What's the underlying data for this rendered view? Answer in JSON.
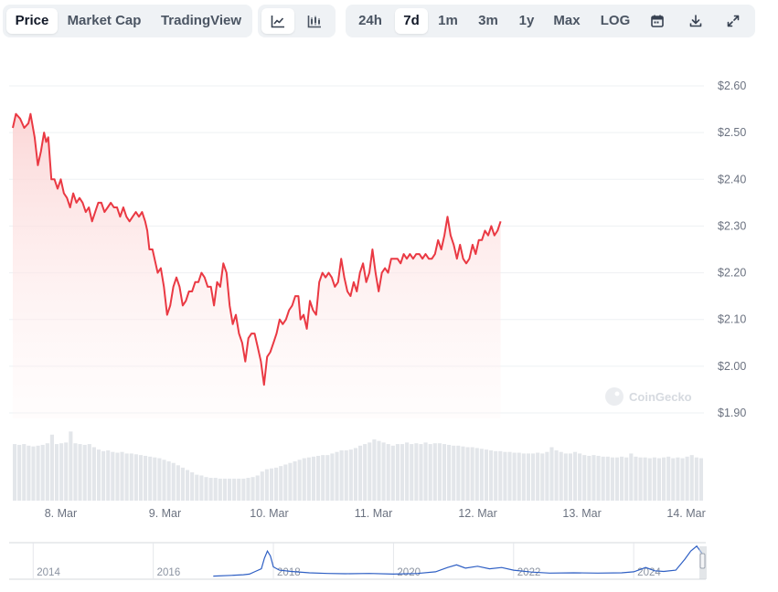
{
  "toolbar": {
    "view_tabs": [
      "Price",
      "Market Cap",
      "TradingView"
    ],
    "active_view": "Price",
    "chart_style_icons": [
      "line-chart-icon",
      "candlestick-chart-icon"
    ],
    "active_style": "line-chart-icon",
    "ranges": [
      "24h",
      "7d",
      "1m",
      "3m",
      "1y",
      "Max",
      "LOG"
    ],
    "active_range": "7d",
    "action_icons": [
      "calendar-icon",
      "download-icon",
      "expand-icon"
    ]
  },
  "watermark": "CoinGecko",
  "colors": {
    "line": "#ea3943",
    "fill_top": "#fbd5d5",
    "volume": "#e3e6ea",
    "minimap_line": "#2e5fc4",
    "grid": "#eef0f3"
  },
  "chart_data": [
    {
      "type": "line",
      "y_tick_labels": [
        "$2.60",
        "$2.50",
        "$2.40",
        "$2.30",
        "$2.20",
        "$2.10",
        "$2.00",
        "$1.90"
      ],
      "ylim": [
        1.9,
        2.6
      ],
      "x_tick_labels": [
        "8. Mar",
        "9. Mar",
        "10. Mar",
        "11. Mar",
        "12. Mar",
        "13. Mar",
        "14. Mar"
      ],
      "x_tick_days": [
        1,
        2,
        3,
        4,
        5,
        6,
        7
      ],
      "xlim_days": [
        0.54,
        7.17
      ],
      "series": [
        {
          "price_points": [
            [
              0.54,
              2.51
            ],
            [
              0.57,
              2.54
            ],
            [
              0.61,
              2.53
            ],
            [
              0.65,
              2.51
            ],
            [
              0.69,
              2.52
            ],
            [
              0.71,
              2.54
            ],
            [
              0.75,
              2.49
            ],
            [
              0.78,
              2.43
            ],
            [
              0.81,
              2.46
            ],
            [
              0.84,
              2.5
            ],
            [
              0.86,
              2.48
            ],
            [
              0.88,
              2.49
            ],
            [
              0.91,
              2.4
            ],
            [
              0.94,
              2.4
            ],
            [
              0.97,
              2.38
            ],
            [
              1.0,
              2.4
            ],
            [
              1.03,
              2.37
            ],
            [
              1.06,
              2.36
            ],
            [
              1.09,
              2.34
            ],
            [
              1.12,
              2.37
            ],
            [
              1.15,
              2.35
            ],
            [
              1.18,
              2.36
            ],
            [
              1.21,
              2.35
            ],
            [
              1.24,
              2.33
            ],
            [
              1.27,
              2.34
            ],
            [
              1.3,
              2.31
            ],
            [
              1.33,
              2.33
            ],
            [
              1.36,
              2.35
            ],
            [
              1.39,
              2.35
            ],
            [
              1.42,
              2.33
            ],
            [
              1.45,
              2.34
            ],
            [
              1.48,
              2.35
            ],
            [
              1.51,
              2.34
            ],
            [
              1.54,
              2.34
            ],
            [
              1.57,
              2.32
            ],
            [
              1.6,
              2.34
            ],
            [
              1.63,
              2.32
            ],
            [
              1.66,
              2.31
            ],
            [
              1.69,
              2.32
            ],
            [
              1.72,
              2.33
            ],
            [
              1.75,
              2.32
            ],
            [
              1.78,
              2.33
            ],
            [
              1.81,
              2.31
            ],
            [
              1.83,
              2.29
            ],
            [
              1.85,
              2.25
            ],
            [
              1.88,
              2.25
            ],
            [
              1.91,
              2.22
            ],
            [
              1.93,
              2.2
            ],
            [
              1.96,
              2.21
            ],
            [
              1.99,
              2.17
            ],
            [
              2.02,
              2.11
            ],
            [
              2.05,
              2.13
            ],
            [
              2.08,
              2.17
            ],
            [
              2.11,
              2.19
            ],
            [
              2.14,
              2.17
            ],
            [
              2.17,
              2.13
            ],
            [
              2.2,
              2.14
            ],
            [
              2.23,
              2.16
            ],
            [
              2.26,
              2.16
            ],
            [
              2.29,
              2.18
            ],
            [
              2.32,
              2.18
            ],
            [
              2.35,
              2.2
            ],
            [
              2.38,
              2.19
            ],
            [
              2.41,
              2.17
            ],
            [
              2.44,
              2.17
            ],
            [
              2.47,
              2.13
            ],
            [
              2.5,
              2.18
            ],
            [
              2.53,
              2.17
            ],
            [
              2.56,
              2.22
            ],
            [
              2.59,
              2.2
            ],
            [
              2.62,
              2.13
            ],
            [
              2.65,
              2.09
            ],
            [
              2.68,
              2.11
            ],
            [
              2.71,
              2.07
            ],
            [
              2.74,
              2.05
            ],
            [
              2.77,
              2.01
            ],
            [
              2.8,
              2.06
            ],
            [
              2.83,
              2.07
            ],
            [
              2.86,
              2.07
            ],
            [
              2.89,
              2.04
            ],
            [
              2.92,
              2.01
            ],
            [
              2.95,
              1.96
            ],
            [
              2.98,
              2.02
            ],
            [
              3.01,
              2.03
            ],
            [
              3.04,
              2.05
            ],
            [
              3.07,
              2.07
            ],
            [
              3.1,
              2.1
            ],
            [
              3.13,
              2.09
            ],
            [
              3.16,
              2.1
            ],
            [
              3.19,
              2.12
            ],
            [
              3.22,
              2.13
            ],
            [
              3.25,
              2.15
            ],
            [
              3.28,
              2.15
            ],
            [
              3.3,
              2.1
            ],
            [
              3.33,
              2.11
            ],
            [
              3.36,
              2.08
            ],
            [
              3.39,
              2.14
            ],
            [
              3.42,
              2.12
            ],
            [
              3.45,
              2.11
            ],
            [
              3.48,
              2.18
            ],
            [
              3.51,
              2.2
            ],
            [
              3.54,
              2.19
            ],
            [
              3.57,
              2.2
            ],
            [
              3.6,
              2.19
            ],
            [
              3.63,
              2.17
            ],
            [
              3.66,
              2.18
            ],
            [
              3.69,
              2.23
            ],
            [
              3.72,
              2.19
            ],
            [
              3.75,
              2.16
            ],
            [
              3.78,
              2.15
            ],
            [
              3.81,
              2.18
            ],
            [
              3.84,
              2.16
            ],
            [
              3.87,
              2.2
            ],
            [
              3.9,
              2.22
            ],
            [
              3.93,
              2.18
            ],
            [
              3.96,
              2.2
            ],
            [
              3.99,
              2.25
            ],
            [
              4.02,
              2.2
            ],
            [
              4.05,
              2.16
            ],
            [
              4.08,
              2.2
            ],
            [
              4.11,
              2.21
            ],
            [
              4.14,
              2.2
            ],
            [
              4.17,
              2.23
            ],
            [
              4.2,
              2.23
            ],
            [
              4.23,
              2.23
            ],
            [
              4.26,
              2.22
            ],
            [
              4.29,
              2.24
            ],
            [
              4.32,
              2.23
            ],
            [
              4.35,
              2.24
            ],
            [
              4.38,
              2.23
            ],
            [
              4.41,
              2.24
            ],
            [
              4.44,
              2.24
            ],
            [
              4.47,
              2.23
            ],
            [
              4.5,
              2.24
            ],
            [
              4.53,
              2.23
            ],
            [
              4.56,
              2.23
            ],
            [
              4.59,
              2.24
            ],
            [
              4.62,
              2.27
            ],
            [
              4.65,
              2.25
            ],
            [
              4.68,
              2.28
            ],
            [
              4.71,
              2.32
            ],
            [
              4.74,
              2.28
            ],
            [
              4.77,
              2.26
            ],
            [
              4.8,
              2.23
            ],
            [
              4.83,
              2.26
            ],
            [
              4.86,
              2.23
            ],
            [
              4.89,
              2.22
            ],
            [
              4.92,
              2.23
            ],
            [
              4.95,
              2.26
            ],
            [
              4.98,
              2.24
            ],
            [
              5.01,
              2.27
            ],
            [
              5.04,
              2.27
            ],
            [
              5.07,
              2.29
            ],
            [
              5.1,
              2.28
            ],
            [
              5.13,
              2.3
            ],
            [
              5.16,
              2.28
            ],
            [
              5.19,
              2.29
            ],
            [
              5.22,
              2.31
            ]
          ]
        }
      ],
      "volume_shape": [
        0.72,
        0.71,
        0.72,
        0.7,
        0.69,
        0.7,
        0.71,
        0.73,
        0.84,
        0.72,
        0.73,
        0.74,
        0.88,
        0.73,
        0.72,
        0.71,
        0.72,
        0.68,
        0.65,
        0.63,
        0.64,
        0.62,
        0.61,
        0.62,
        0.6,
        0.6,
        0.59,
        0.58,
        0.57,
        0.56,
        0.55,
        0.54,
        0.52,
        0.5,
        0.48,
        0.45,
        0.42,
        0.39,
        0.36,
        0.33,
        0.32,
        0.3,
        0.29,
        0.29,
        0.28,
        0.28,
        0.28,
        0.28,
        0.28,
        0.28,
        0.29,
        0.3,
        0.32,
        0.37,
        0.4,
        0.41,
        0.42,
        0.44,
        0.46,
        0.48,
        0.5,
        0.52,
        0.54,
        0.55,
        0.56,
        0.57,
        0.58,
        0.58,
        0.6,
        0.62,
        0.64,
        0.64,
        0.65,
        0.67,
        0.7,
        0.72,
        0.74,
        0.78,
        0.76,
        0.74,
        0.72,
        0.7,
        0.72,
        0.72,
        0.74,
        0.72,
        0.73,
        0.72,
        0.74,
        0.72,
        0.73,
        0.73,
        0.72,
        0.71,
        0.7,
        0.7,
        0.69,
        0.68,
        0.68,
        0.67,
        0.66,
        0.65,
        0.64,
        0.63,
        0.63,
        0.62,
        0.62,
        0.61,
        0.61,
        0.6,
        0.6,
        0.6,
        0.61,
        0.6,
        0.62,
        0.68,
        0.64,
        0.62,
        0.6,
        0.6,
        0.62,
        0.6,
        0.58,
        0.57,
        0.58,
        0.57,
        0.56,
        0.56,
        0.55,
        0.55,
        0.56,
        0.55,
        0.6,
        0.56,
        0.55,
        0.55,
        0.54,
        0.55,
        0.54,
        0.55,
        0.56,
        0.54,
        0.55,
        0.54,
        0.56,
        0.58,
        0.55,
        0.54
      ],
      "minimap": {
        "year_labels": [
          "2014",
          "2016",
          "2018",
          "2020",
          "2022",
          "2024"
        ],
        "years": [
          2014,
          2016,
          2018,
          2020,
          2022,
          2024
        ],
        "x_range_years": [
          2013.6,
          2025.2
        ],
        "line_points": [
          [
            2017.0,
            0.04
          ],
          [
            2017.3,
            0.06
          ],
          [
            2017.5,
            0.08
          ],
          [
            2017.6,
            0.1
          ],
          [
            2017.7,
            0.18
          ],
          [
            2017.8,
            0.26
          ],
          [
            2017.85,
            0.58
          ],
          [
            2017.9,
            0.8
          ],
          [
            2017.95,
            0.65
          ],
          [
            2018.0,
            0.32
          ],
          [
            2018.1,
            0.22
          ],
          [
            2018.3,
            0.18
          ],
          [
            2018.6,
            0.14
          ],
          [
            2018.9,
            0.12
          ],
          [
            2019.2,
            0.11
          ],
          [
            2019.6,
            0.12
          ],
          [
            2020.0,
            0.1
          ],
          [
            2020.4,
            0.12
          ],
          [
            2020.7,
            0.17
          ],
          [
            2020.9,
            0.3
          ],
          [
            2021.05,
            0.38
          ],
          [
            2021.2,
            0.28
          ],
          [
            2021.4,
            0.34
          ],
          [
            2021.6,
            0.26
          ],
          [
            2021.8,
            0.3
          ],
          [
            2022.0,
            0.22
          ],
          [
            2022.3,
            0.16
          ],
          [
            2022.6,
            0.13
          ],
          [
            2023.0,
            0.14
          ],
          [
            2023.4,
            0.13
          ],
          [
            2023.8,
            0.14
          ],
          [
            2024.0,
            0.17
          ],
          [
            2024.2,
            0.3
          ],
          [
            2024.35,
            0.2
          ],
          [
            2024.5,
            0.18
          ],
          [
            2024.7,
            0.22
          ],
          [
            2024.85,
            0.55
          ],
          [
            2024.95,
            0.8
          ],
          [
            2025.05,
            0.95
          ],
          [
            2025.15,
            0.7
          ]
        ]
      }
    }
  ]
}
